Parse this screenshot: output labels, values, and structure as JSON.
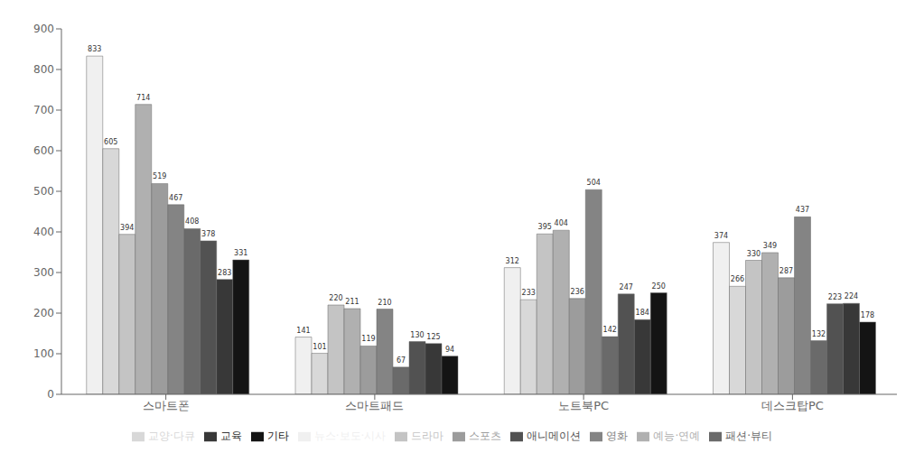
{
  "chart_data": {
    "type": "bar",
    "categories": [
      "스마트폰",
      "스마트패드",
      "노트북PC",
      "데스크탑PC"
    ],
    "series": [
      {
        "name": "뉴스·보도·시사",
        "color": "#f0f0f0",
        "values": [
          833,
          141,
          312,
          374
        ]
      },
      {
        "name": "교양·다큐",
        "color": "#d8d8d8",
        "values": [
          605,
          101,
          233,
          266
        ]
      },
      {
        "name": "드라마",
        "color": "#c4c4c4",
        "values": [
          394,
          220,
          395,
          330
        ]
      },
      {
        "name": "예능·연예",
        "color": "#b0b0b0",
        "values": [
          714,
          211,
          404,
          349
        ]
      },
      {
        "name": "스포츠",
        "color": "#9c9c9c",
        "values": [
          519,
          119,
          236,
          287
        ]
      },
      {
        "name": "영화",
        "color": "#848484",
        "values": [
          467,
          210,
          504,
          437
        ]
      },
      {
        "name": "패션·뷰티",
        "color": "#6a6a6a",
        "values": [
          408,
          67,
          142,
          132
        ]
      },
      {
        "name": "애니메이션",
        "color": "#525252",
        "values": [
          378,
          130,
          247,
          223
        ]
      },
      {
        "name": "교육",
        "color": "#383838",
        "values": [
          283,
          125,
          184,
          224
        ]
      },
      {
        "name": "기타",
        "color": "#141414",
        "values": [
          331,
          94,
          250,
          178
        ]
      }
    ],
    "ylim": [
      0,
      900
    ],
    "yticks": [
      0,
      100,
      200,
      300,
      400,
      500,
      600,
      700,
      800,
      900
    ],
    "grid": false,
    "data_labels": true
  }
}
